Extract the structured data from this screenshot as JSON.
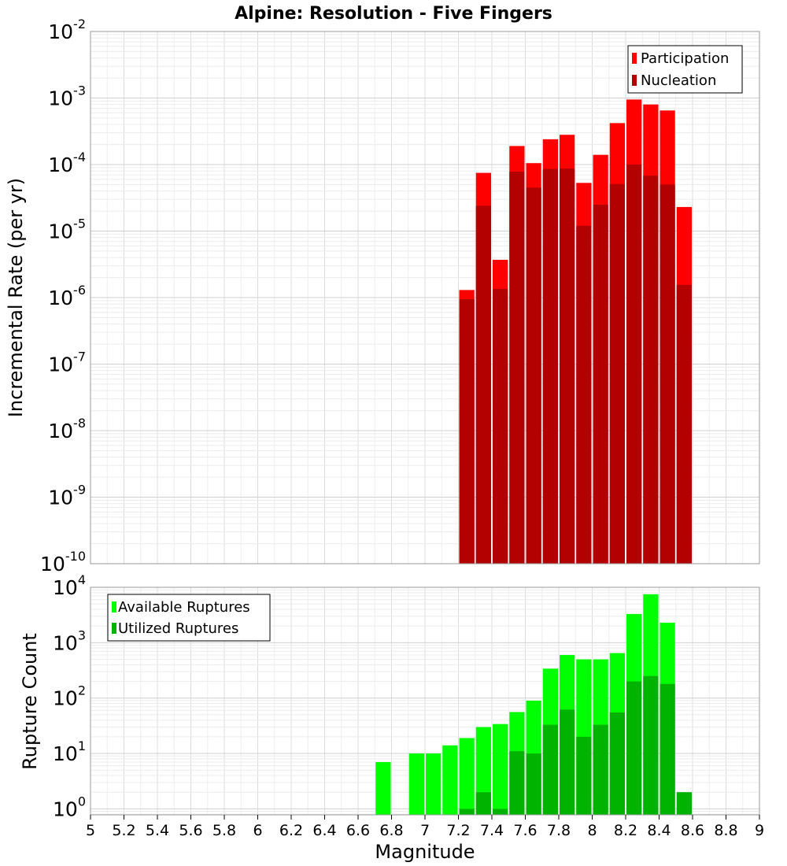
{
  "title": "Alpine: Resolution - Five Fingers",
  "chart_data": [
    {
      "type": "bar",
      "yscale": "log",
      "ylabel": "Incremental Rate (per yr)",
      "ylim": [
        1e-10,
        0.01
      ],
      "xlim": [
        5,
        9
      ],
      "bin_width": 0.1,
      "y_tick_base": "10",
      "y_tick_exponents": [
        "-10",
        "-9",
        "-8",
        "-7",
        "-6",
        "-5",
        "-4",
        "-3",
        "-2"
      ],
      "grid": true,
      "legend_position": "top-right",
      "series": [
        {
          "name": "Participation",
          "color": "#ff0000",
          "x": [
            7.25,
            7.35,
            7.45,
            7.55,
            7.65,
            7.75,
            7.85,
            7.95,
            8.05,
            8.15,
            8.25,
            8.35,
            8.45,
            8.55
          ],
          "values": [
            1.3e-06,
            7.5e-05,
            3.7e-06,
            0.00019,
            0.000105,
            0.00024,
            0.00028,
            5.3e-05,
            0.00014,
            0.00042,
            0.00095,
            0.0008,
            0.00065,
            2.3e-05
          ]
        },
        {
          "name": "Nucleation",
          "color": "#b30000",
          "x": [
            7.25,
            7.35,
            7.45,
            7.55,
            7.65,
            7.75,
            7.85,
            7.95,
            8.05,
            8.15,
            8.25,
            8.35,
            8.45,
            8.55
          ],
          "values": [
            9.5e-07,
            2.4e-05,
            1.35e-06,
            7.8e-05,
            4.5e-05,
            8.6e-05,
            8.7e-05,
            1.2e-05,
            2.5e-05,
            5.1e-05,
            0.0001,
            6.8e-05,
            5e-05,
            1.55e-06
          ]
        }
      ]
    },
    {
      "type": "bar",
      "yscale": "log",
      "ylabel": "Rupture Count",
      "xlabel": "Magnitude",
      "ylim": [
        0.78,
        10000
      ],
      "xlim": [
        5,
        9
      ],
      "bin_width": 0.1,
      "y_tick_base": "10",
      "y_tick_exponents": [
        "0",
        "1",
        "2",
        "3",
        "4"
      ],
      "x_tick_labels": [
        "5",
        "5.2",
        "5.4",
        "5.6",
        "5.8",
        "6",
        "6.2",
        "6.4",
        "6.6",
        "6.8",
        "7",
        "7.2",
        "7.4",
        "7.6",
        "7.8",
        "8",
        "8.2",
        "8.4",
        "8.6",
        "8.8",
        "9"
      ],
      "grid": true,
      "legend_position": "top-left",
      "series": [
        {
          "name": "Available Ruptures",
          "color": "#00ff00",
          "x": [
            6.75,
            6.95,
            7.05,
            7.15,
            7.25,
            7.35,
            7.45,
            7.55,
            7.65,
            7.75,
            7.85,
            7.95,
            8.05,
            8.15,
            8.25,
            8.35,
            8.45
          ],
          "values": [
            7,
            10,
            10,
            14,
            19,
            30,
            34,
            56,
            90,
            340,
            600,
            500,
            500,
            650,
            3300,
            7500,
            2300
          ]
        },
        {
          "name": "Utilized Ruptures",
          "color": "#00b300",
          "x": [
            7.25,
            7.35,
            7.45,
            7.55,
            7.65,
            7.75,
            7.85,
            7.95,
            8.05,
            8.15,
            8.25,
            8.35,
            8.45,
            8.55
          ],
          "values": [
            1,
            2,
            1,
            11,
            10,
            33,
            62,
            20,
            33,
            55,
            200,
            250,
            180,
            2
          ]
        }
      ]
    }
  ]
}
